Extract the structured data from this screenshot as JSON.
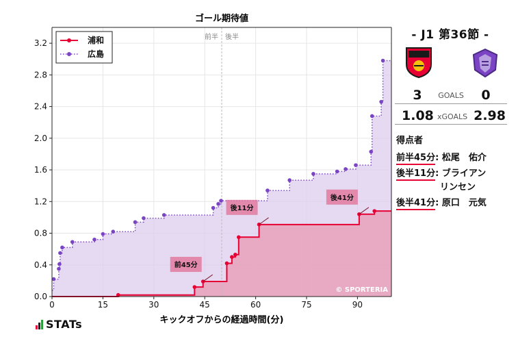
{
  "chart_data": {
    "type": "line",
    "title": "ゴール期待値",
    "xlabel": "キックオフからの経過時間(分)",
    "ylabel": "",
    "xlim": [
      0,
      100
    ],
    "ylim": [
      0,
      3.4
    ],
    "xticks": [
      0,
      15,
      30,
      45,
      60,
      75,
      90
    ],
    "yticks": [
      0.0,
      0.4,
      0.8,
      1.2,
      1.6,
      2.0,
      2.4,
      2.8,
      3.2
    ],
    "half_marker": {
      "x": 50,
      "left_label": "前半",
      "right_label": "後半"
    },
    "watermark": "© SPORTERIA",
    "legend_position": "top-left",
    "series": [
      {
        "name": "浦和",
        "color": "#e60033",
        "fill": "#e8a3bd",
        "step": "post",
        "points": [
          [
            0,
            0.0
          ],
          [
            19.5,
            0.02
          ],
          [
            42,
            0.12
          ],
          [
            44.5,
            0.19
          ],
          [
            51.5,
            0.42
          ],
          [
            53,
            0.5
          ],
          [
            54,
            0.53
          ],
          [
            55,
            0.75
          ],
          [
            61,
            0.91
          ],
          [
            90.5,
            1.04
          ],
          [
            95,
            1.08
          ],
          [
            100,
            1.08
          ]
        ]
      },
      {
        "name": "広島",
        "color": "#7b44c4",
        "fill": "#dccdee",
        "step": "post",
        "points": [
          [
            0,
            0.08
          ],
          [
            0.5,
            0.22
          ],
          [
            2,
            0.35
          ],
          [
            2.2,
            0.41
          ],
          [
            2.4,
            0.55
          ],
          [
            3,
            0.62
          ],
          [
            6,
            0.69
          ],
          [
            12.5,
            0.72
          ],
          [
            15,
            0.79
          ],
          [
            18,
            0.82
          ],
          [
            24.5,
            0.94
          ],
          [
            27,
            0.99
          ],
          [
            33,
            1.03
          ],
          [
            47.5,
            1.12
          ],
          [
            49,
            1.17
          ],
          [
            49.8,
            1.21
          ],
          [
            63.5,
            1.34
          ],
          [
            70,
            1.47
          ],
          [
            77,
            1.55
          ],
          [
            84,
            1.58
          ],
          [
            86.5,
            1.61
          ],
          [
            89.5,
            1.66
          ],
          [
            94,
            1.83
          ],
          [
            94.3,
            2.28
          ],
          [
            97,
            2.46
          ],
          [
            97.5,
            2.98
          ],
          [
            100,
            2.98
          ]
        ]
      }
    ],
    "annotations": [
      {
        "label": "前45分",
        "x": 44.5,
        "y": 0.19
      },
      {
        "label": "後11分",
        "x": 61,
        "y": 0.91
      },
      {
        "label": "後41分",
        "x": 90.5,
        "y": 1.04
      }
    ]
  },
  "match": {
    "title": "- J1 第36節 -",
    "home_score": "3",
    "away_score": "0",
    "goals_label": "GOALS",
    "home_xg": "1.08",
    "away_xg": "2.98",
    "xg_label": "xGOALS",
    "home_color": "#e60033",
    "away_color": "#7b44c4"
  },
  "scorers": {
    "title": "得点者",
    "items": [
      {
        "time": "前半45分",
        "name": "松尾　佑介"
      },
      {
        "time": "後半11分",
        "name": "ブライアン",
        "name2": "リンセン"
      },
      {
        "time": "後半41分",
        "name": "原口　元気"
      }
    ]
  },
  "brand": {
    "name": "STATs"
  }
}
